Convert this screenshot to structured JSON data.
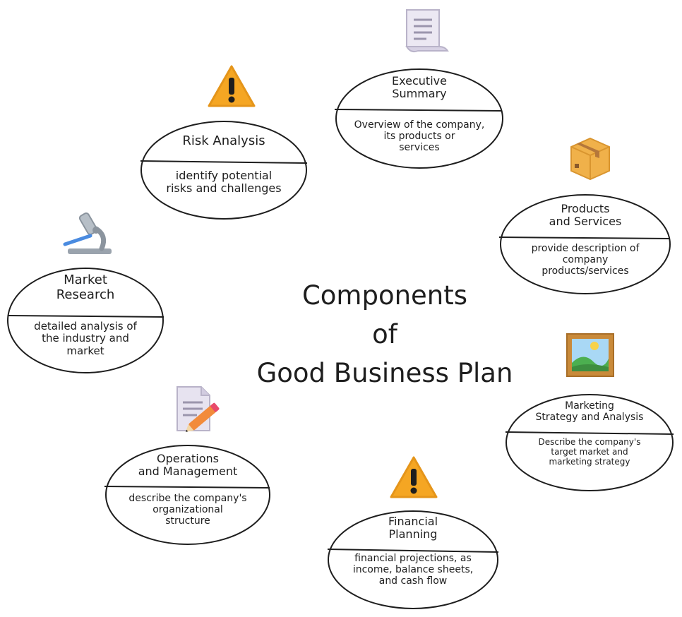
{
  "diagram": {
    "title": "Components\nof\nGood Business Plan",
    "components": [
      {
        "id": "executive-summary",
        "title": "Executive\nSummary",
        "description": "Overview of the company,\nits products or\nservices",
        "icon": "scroll-icon"
      },
      {
        "id": "products-services",
        "title": "Products\nand Services",
        "description": "provide description of\ncompany\nproducts/services",
        "icon": "package-icon"
      },
      {
        "id": "marketing-strategy",
        "title": "Marketing\nStrategy and Analysis",
        "description": "Describe the company's\ntarget market and\nmarketing strategy",
        "icon": "framed-picture-icon"
      },
      {
        "id": "financial-planning",
        "title": "Financial\nPlanning",
        "description": "financial projections, as\nincome, balance sheets,\nand cash flow",
        "icon": "warning-icon"
      },
      {
        "id": "operations-management",
        "title": "Operations\nand Management",
        "description": "describe the company's\norganizational\nstructure",
        "icon": "memo-icon"
      },
      {
        "id": "market-research",
        "title": "Market\nResearch",
        "description": "detailed analysis of\nthe industry and\nmarket",
        "icon": "microscope-icon"
      },
      {
        "id": "risk-analysis",
        "title": "Risk Analysis",
        "description": "identify potential\nrisks and challenges",
        "icon": "warning-icon"
      }
    ],
    "colors": {
      "stroke": "#1e1e1e",
      "warning": "#f5a623",
      "package": "#f0b14a",
      "document": "#e7e3f0",
      "frame": "#c98a3a",
      "sky": "#a9d8f5",
      "grass": "#4caf50",
      "microscope": "#9aa3ad",
      "pencil": "#f28b3c"
    }
  }
}
